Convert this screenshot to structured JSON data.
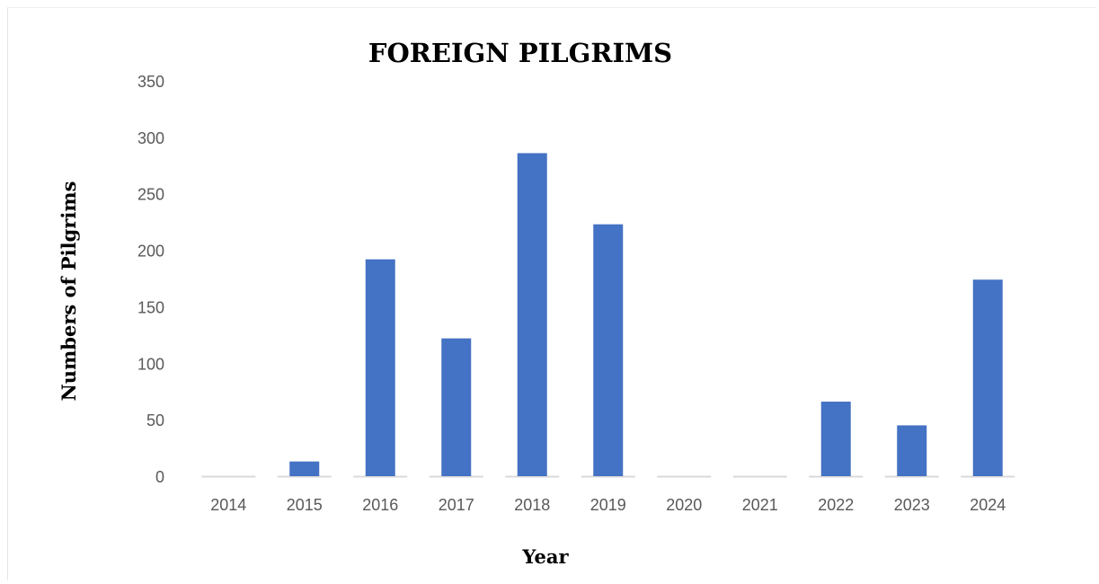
{
  "chart_data": {
    "type": "bar",
    "title": "FOREIGN PILGRIMS",
    "xlabel": "Year",
    "ylabel": "Numbers of Pilgrims",
    "categories": [
      "2014",
      "2015",
      "2016",
      "2017",
      "2018",
      "2019",
      "2020",
      "2021",
      "2022",
      "2023",
      "2024"
    ],
    "values": [
      0,
      13,
      192,
      122,
      286,
      223,
      0,
      0,
      66,
      45,
      174
    ],
    "ylim": [
      0,
      350
    ],
    "yticks": [
      "0",
      "50",
      "100",
      "150",
      "200",
      "250",
      "300",
      "350"
    ],
    "grid": false,
    "legend": "none",
    "bar_color": "#4472C4",
    "baseline_color": "#d9d9d9"
  }
}
